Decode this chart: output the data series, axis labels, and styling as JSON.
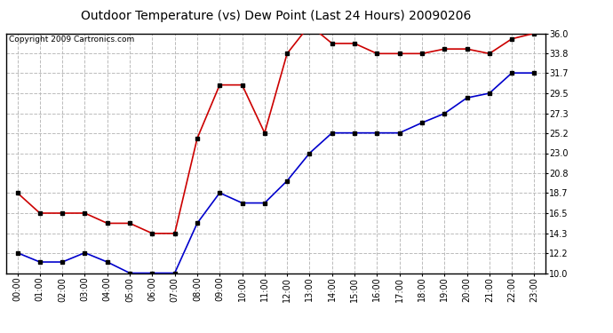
{
  "title": "Outdoor Temperature (vs) Dew Point (Last 24 Hours) 20090206",
  "copyright_text": "Copyright 2009 Cartronics.com",
  "x_labels": [
    "00:00",
    "01:00",
    "02:00",
    "03:00",
    "04:00",
    "05:00",
    "06:00",
    "07:00",
    "08:00",
    "09:00",
    "10:00",
    "11:00",
    "12:00",
    "13:00",
    "14:00",
    "15:00",
    "16:00",
    "17:00",
    "18:00",
    "19:00",
    "20:00",
    "21:00",
    "22:00",
    "23:00"
  ],
  "temp_data": [
    18.7,
    16.5,
    16.5,
    16.5,
    15.4,
    15.4,
    14.3,
    14.3,
    24.6,
    30.4,
    30.4,
    25.2,
    33.8,
    36.9,
    34.9,
    34.9,
    33.8,
    33.8,
    33.8,
    34.3,
    34.3,
    33.8,
    35.4,
    36.0
  ],
  "dew_data": [
    12.2,
    11.2,
    11.2,
    12.2,
    11.2,
    10.0,
    10.0,
    10.0,
    15.4,
    18.7,
    17.6,
    17.6,
    20.0,
    23.0,
    25.2,
    25.2,
    25.2,
    25.2,
    26.3,
    27.3,
    29.0,
    29.5,
    31.7,
    31.7
  ],
  "temp_color": "#cc0000",
  "dew_color": "#0000cc",
  "bg_color": "#ffffff",
  "plot_bg_color": "#ffffff",
  "grid_color": "#bbbbbb",
  "ylim_min": 10.0,
  "ylim_max": 36.0,
  "yticks": [
    10.0,
    12.2,
    14.3,
    16.5,
    18.7,
    20.8,
    23.0,
    25.2,
    27.3,
    29.5,
    31.7,
    33.8,
    36.0
  ],
  "title_fontsize": 10,
  "copyright_fontsize": 6.5,
  "tick_fontsize": 7,
  "line_width": 1.2,
  "marker": "s",
  "marker_size": 2.5,
  "marker_color": "#000000"
}
